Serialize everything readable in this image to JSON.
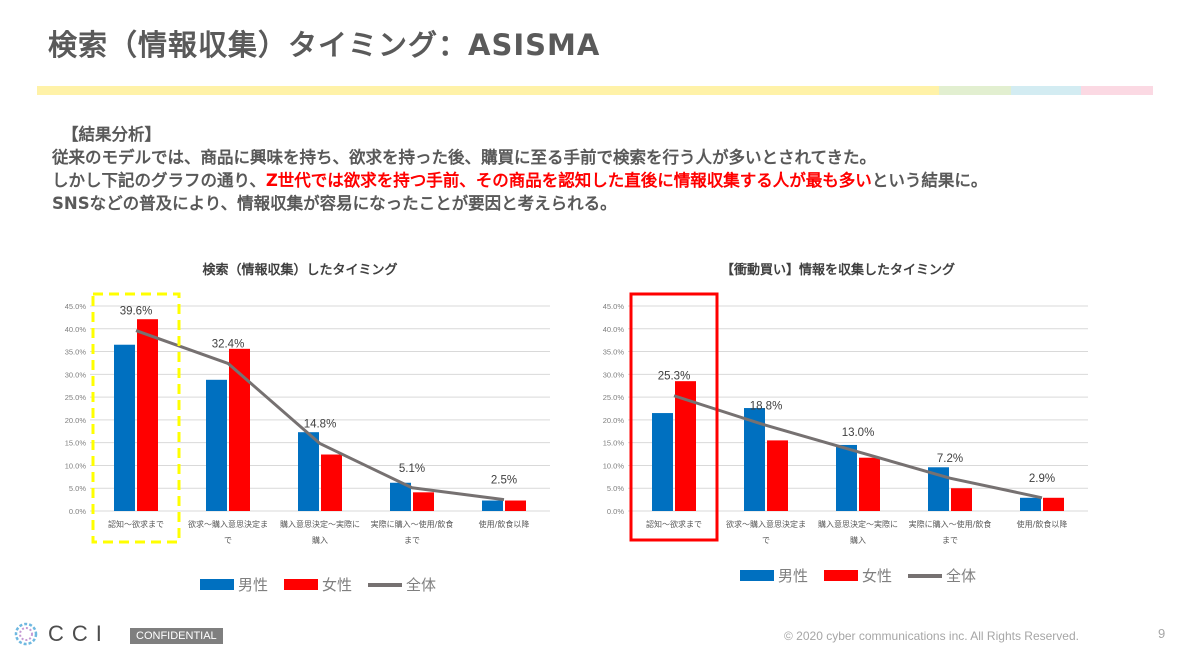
{
  "header": {
    "title": "検索（情報収集）タイミング：ASISMA"
  },
  "summary": {
    "heading": "【結果分析】",
    "line1": "従来のモデルでは、商品に興味を持ち、欲求を持った後、購買に至る手前で検索を行う人が多いとされてきた。",
    "line2_pre": "しかし下記のグラフの通り、",
    "line2_highlight": "Z世代では欲求を持つ手前、その商品を認知した直後に情報収集する人が最も多い",
    "line2_post": "という結果に。",
    "line3": "SNSなどの普及により、情報収集が容易になったことが要因と考えられる。"
  },
  "colors": {
    "male": "#0070c0",
    "female": "#ff0000",
    "total": "#767171",
    "highlight_left": "#ffff00",
    "highlight_right": "#ff0000"
  },
  "chart_data": [
    {
      "type": "bar",
      "title": "検索（情報収集）したタイミング",
      "categories": [
        [
          "認知～欲求まで"
        ],
        [
          "欲求～購入意思決定ま",
          "で"
        ],
        [
          "購入意思決定～実際に",
          "購入"
        ],
        [
          "実際に購入～使用/飲食",
          "まで"
        ],
        [
          "使用/飲食以降"
        ]
      ],
      "series": [
        {
          "name": "男性",
          "kind": "bar",
          "values": [
            36.5,
            28.8,
            17.3,
            6.2,
            2.3
          ]
        },
        {
          "name": "女性",
          "kind": "bar",
          "values": [
            42.1,
            35.6,
            12.4,
            4.1,
            2.3
          ]
        },
        {
          "name": "全体",
          "kind": "line",
          "values": [
            39.6,
            32.4,
            14.8,
            5.1,
            2.5
          ]
        }
      ],
      "data_labels": [
        "39.6%",
        "32.4%",
        "14.8%",
        "5.1%",
        "2.5%"
      ],
      "y_ticks": [
        "0.0%",
        "5.0%",
        "10.0%",
        "15.0%",
        "20.0%",
        "25.0%",
        "30.0%",
        "35.0%",
        "40.0%",
        "45.0%"
      ],
      "ylim": [
        0,
        45
      ],
      "highlight_category": 0,
      "highlight_style": "dashed-yellow"
    },
    {
      "type": "bar",
      "title": "【衝動買い】情報を収集したタイミング",
      "categories": [
        [
          "認知～欲求まで"
        ],
        [
          "欲求～購入意思決定ま",
          "で"
        ],
        [
          "購入意思決定～実際に",
          "購入"
        ],
        [
          "実際に購入～使用/飲食",
          "まで"
        ],
        [
          "使用/飲食以降"
        ]
      ],
      "series": [
        {
          "name": "男性",
          "kind": "bar",
          "values": [
            21.5,
            22.6,
            14.5,
            9.6,
            2.9
          ]
        },
        {
          "name": "女性",
          "kind": "bar",
          "values": [
            28.5,
            15.5,
            11.7,
            5.0,
            2.9
          ]
        },
        {
          "name": "全体",
          "kind": "line",
          "values": [
            25.3,
            18.8,
            13.0,
            7.2,
            2.9
          ]
        }
      ],
      "data_labels": [
        "25.3%",
        "18.8%",
        "13.0%",
        "7.2%",
        "2.9%"
      ],
      "y_ticks": [
        "0.0%",
        "5.0%",
        "10.0%",
        "15.0%",
        "20.0%",
        "25.0%",
        "30.0%",
        "35.0%",
        "40.0%",
        "45.0%"
      ],
      "ylim": [
        0,
        45
      ],
      "highlight_category": 0,
      "highlight_style": "solid-red"
    }
  ],
  "legend": {
    "male": "男性",
    "female": "女性",
    "total": "全体"
  },
  "footer": {
    "logo_text": "CCI",
    "confidential": "CONFIDENTIAL",
    "copyright": "© 2020 cyber communications inc.  All Rights Reserved.",
    "page_number": "9"
  }
}
